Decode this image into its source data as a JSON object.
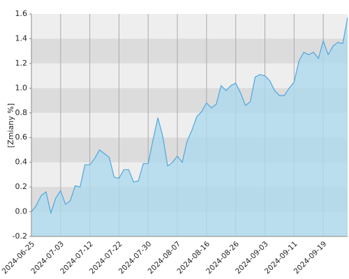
{
  "chart_data": {
    "type": "area",
    "y_label": "[Zmiany %]",
    "categories": [
      "2024-06-25",
      null,
      null,
      null,
      null,
      null,
      "2024-07-03",
      null,
      null,
      null,
      null,
      null,
      "2024-07-12",
      null,
      null,
      null,
      null,
      null,
      "2024-07-22",
      null,
      null,
      null,
      null,
      null,
      "2024-07-30",
      null,
      null,
      null,
      null,
      null,
      "2024-08-07",
      null,
      null,
      null,
      null,
      null,
      "2024-08-16",
      null,
      null,
      null,
      null,
      null,
      "2024-08-26",
      null,
      null,
      null,
      null,
      null,
      "2024-09-03",
      null,
      null,
      null,
      null,
      null,
      "2024-09-11",
      null,
      null,
      null,
      null,
      null,
      "2024-09-19",
      null,
      null,
      null,
      null,
      null
    ],
    "values": [
      0.0,
      0.05,
      0.13,
      0.16,
      -0.01,
      0.11,
      0.17,
      0.06,
      0.09,
      0.21,
      0.2,
      0.38,
      0.38,
      0.43,
      0.5,
      0.47,
      0.44,
      0.28,
      0.27,
      0.34,
      0.34,
      0.24,
      0.25,
      0.39,
      0.39,
      0.58,
      0.76,
      0.61,
      0.37,
      0.4,
      0.45,
      0.4,
      0.57,
      0.66,
      0.77,
      0.81,
      0.88,
      0.84,
      0.87,
      1.02,
      0.98,
      1.02,
      1.04,
      0.96,
      0.86,
      0.89,
      1.09,
      1.11,
      1.1,
      1.06,
      0.98,
      0.94,
      0.94,
      1.0,
      1.05,
      1.22,
      1.29,
      1.27,
      1.29,
      1.24,
      1.38,
      1.27,
      1.34,
      1.37,
      1.36,
      1.57
    ],
    "color": "#4ea6dc",
    "fill": "#aed9ee",
    "ylim": [
      -0.2,
      1.6
    ],
    "yticks": [
      -0.2,
      {
        "value": 0,
        "label": "0.0"
      },
      0.2,
      0.4,
      0.6,
      0.8,
      {
        "value": 1,
        "label": "1.0"
      },
      1.2,
      1.4,
      1.6
    ],
    "grid": true
  }
}
